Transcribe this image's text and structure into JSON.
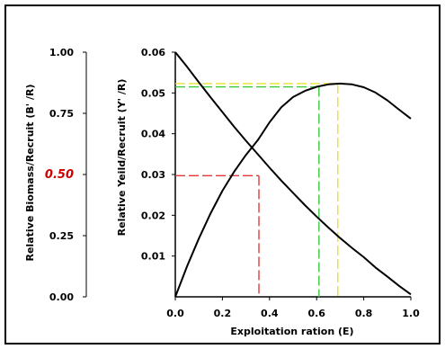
{
  "chart_data": {
    "type": "line",
    "title": "",
    "xlabel": "Exploitation ration (E)",
    "ylabel": "Relative Yeild/Recruit (Y' /R)",
    "y2label": "Relative Biomass/Recruit  (B' /R)",
    "xlim": [
      0,
      1
    ],
    "ylim": [
      0,
      0.06
    ],
    "y2lim": [
      0,
      1
    ],
    "xticks": [
      "0.0",
      "0.2",
      "0.4",
      "0.6",
      "0.8",
      "1.0"
    ],
    "yticks": [
      "0.06",
      "0.05",
      "0.04",
      "0.03",
      "0.02",
      "0.01"
    ],
    "y2ticks": [
      "1.00",
      "0.75",
      "0.50",
      "0.25",
      "0.00"
    ],
    "grid": false,
    "series": [
      {
        "axis": "left",
        "x": [
          0.0,
          0.05,
          0.1,
          0.15,
          0.2,
          0.25,
          0.3,
          0.35,
          0.4,
          0.45,
          0.5,
          0.55,
          0.6,
          0.65,
          0.7,
          0.75,
          0.8,
          0.85,
          0.9,
          0.95,
          1.0
        ],
        "values": [
          0.0,
          0.0075,
          0.0143,
          0.0205,
          0.026,
          0.0307,
          0.0348,
          0.0384,
          0.0428,
          0.0465,
          0.049,
          0.0505,
          0.0515,
          0.0521,
          0.0523,
          0.0521,
          0.0514,
          0.0501,
          0.0482,
          0.0459,
          0.0437
        ]
      },
      {
        "axis": "right",
        "x": [
          0.0,
          0.05,
          0.1,
          0.15,
          0.2,
          0.25,
          0.3,
          0.35,
          0.4,
          0.45,
          0.5,
          0.55,
          0.6,
          0.65,
          0.7,
          0.75,
          0.8,
          0.85,
          0.9,
          0.95,
          1.0
        ],
        "values": [
          1.0,
          0.94,
          0.877,
          0.815,
          0.755,
          0.695,
          0.638,
          0.583,
          0.528,
          0.475,
          0.425,
          0.375,
          0.328,
          0.283,
          0.24,
          0.2,
          0.162,
          0.12,
          0.083,
          0.045,
          0.01
        ]
      }
    ],
    "reference_lines": [
      {
        "name": "E at 50% biomass",
        "x": 0.355,
        "y_left": 0.0297,
        "color": "#e03a3a"
      },
      {
        "name": "E at max yield (green)",
        "x": 0.61,
        "y_left": 0.0515,
        "color": "#3cc83c"
      },
      {
        "name": "E at max yield (yellow)",
        "x": 0.69,
        "y_left": 0.0523,
        "color": "#e8e030"
      }
    ]
  }
}
